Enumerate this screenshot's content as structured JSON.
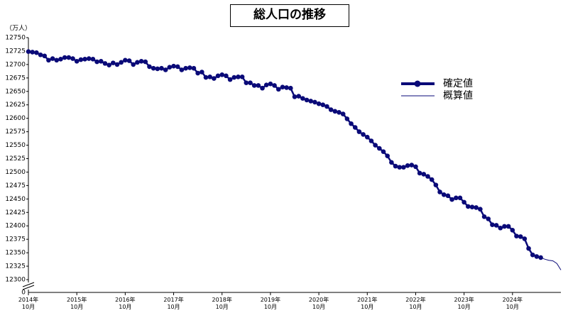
{
  "chart_data": {
    "type": "line",
    "title": "総人口の推移",
    "y_unit_label": "（万人）",
    "y_break_tick": 0,
    "ylim": [
      12300,
      12750
    ],
    "yticks": [
      12300,
      12325,
      12350,
      12375,
      12400,
      12425,
      12450,
      12475,
      12500,
      12525,
      12550,
      12575,
      12600,
      12625,
      12650,
      12675,
      12700,
      12725,
      12750
    ],
    "legend_position": "right",
    "categories": [
      "2014年\n10月",
      null,
      null,
      null,
      null,
      null,
      null,
      null,
      null,
      null,
      null,
      null,
      "2015年\n10月",
      null,
      null,
      null,
      null,
      null,
      null,
      null,
      null,
      null,
      null,
      null,
      "2016年\n10月",
      null,
      null,
      null,
      null,
      null,
      null,
      null,
      null,
      null,
      null,
      null,
      "2017年\n10月",
      null,
      null,
      null,
      null,
      null,
      null,
      null,
      null,
      null,
      null,
      null,
      "2018年\n10月",
      null,
      null,
      null,
      null,
      null,
      null,
      null,
      null,
      null,
      null,
      null,
      "2019年\n10月",
      null,
      null,
      null,
      null,
      null,
      null,
      null,
      null,
      null,
      null,
      null,
      "2020年\n10月",
      null,
      null,
      null,
      null,
      null,
      null,
      null,
      null,
      null,
      null,
      null,
      "2021年\n10月",
      null,
      null,
      null,
      null,
      null,
      null,
      null,
      null,
      null,
      null,
      null,
      "2022年\n10月",
      null,
      null,
      null,
      null,
      null,
      null,
      null,
      null,
      null,
      null,
      null,
      "2023年\n10月",
      null,
      null,
      null,
      null,
      null,
      null,
      null,
      null,
      null,
      null,
      null,
      "2024年\n10月",
      null,
      null,
      null,
      null,
      null,
      null,
      null,
      null,
      null,
      null,
      null,
      null
    ],
    "series": [
      {
        "name": "確定値",
        "color": "#0a0a78",
        "markers": true,
        "values": [
          12724,
          12723,
          12722,
          12718,
          12716,
          12708,
          12711,
          12708,
          12710,
          12713,
          12713,
          12711,
          12706,
          12709,
          12710,
          12711,
          12710,
          12705,
          12706,
          12702,
          12699,
          12703,
          12700,
          12704,
          12708,
          12707,
          12700,
          12704,
          12706,
          12705,
          12696,
          12693,
          12692,
          12693,
          12690,
          12695,
          12697,
          12696,
          12690,
          12693,
          12694,
          12693,
          12684,
          12686,
          12676,
          12677,
          12674,
          12679,
          12681,
          12679,
          12672,
          12676,
          12677,
          12677,
          12666,
          12666,
          12661,
          12661,
          12656,
          12662,
          12664,
          12661,
          12654,
          12658,
          12657,
          12656,
          12640,
          12641,
          12637,
          12634,
          12632,
          12630,
          12627,
          12625,
          12622,
          12616,
          12613,
          12611,
          12608,
          12599,
          12590,
          12583,
          12575,
          12570,
          12565,
          12558,
          12550,
          12544,
          12538,
          12530,
          12518,
          12511,
          12509,
          12509,
          12512,
          12513,
          12510,
          12498,
          12496,
          12492,
          12486,
          12476,
          12463,
          12458,
          12456,
          12449,
          12452,
          12452,
          12444,
          12436,
          12435,
          12434,
          12431,
          12417,
          12413,
          12402,
          12401,
          12396,
          12399,
          12399,
          12392,
          12381,
          12380,
          12376,
          12358,
          12346,
          12343,
          12341,
          null,
          null,
          null,
          null,
          null
        ]
      },
      {
        "name": "概算値",
        "color": "#0a0a78",
        "markers": false,
        "values": [
          null,
          null,
          null,
          null,
          null,
          null,
          null,
          null,
          null,
          null,
          null,
          null,
          null,
          null,
          null,
          null,
          null,
          null,
          null,
          null,
          null,
          null,
          null,
          null,
          null,
          null,
          null,
          null,
          null,
          null,
          null,
          null,
          null,
          null,
          null,
          null,
          null,
          null,
          null,
          null,
          null,
          null,
          null,
          null,
          null,
          null,
          null,
          null,
          null,
          null,
          null,
          null,
          null,
          null,
          null,
          null,
          null,
          null,
          null,
          null,
          null,
          null,
          null,
          null,
          null,
          null,
          null,
          null,
          null,
          null,
          null,
          null,
          null,
          null,
          null,
          null,
          null,
          null,
          null,
          null,
          null,
          null,
          null,
          null,
          null,
          null,
          null,
          null,
          null,
          null,
          null,
          null,
          null,
          null,
          null,
          null,
          null,
          null,
          null,
          null,
          null,
          null,
          null,
          null,
          null,
          null,
          null,
          null,
          null,
          null,
          null,
          null,
          null,
          null,
          null,
          null,
          null,
          null,
          null,
          null,
          null,
          null,
          null,
          null,
          null,
          null,
          null,
          12341,
          12338,
          12336,
          12335,
          12330,
          12318
        ]
      }
    ]
  }
}
